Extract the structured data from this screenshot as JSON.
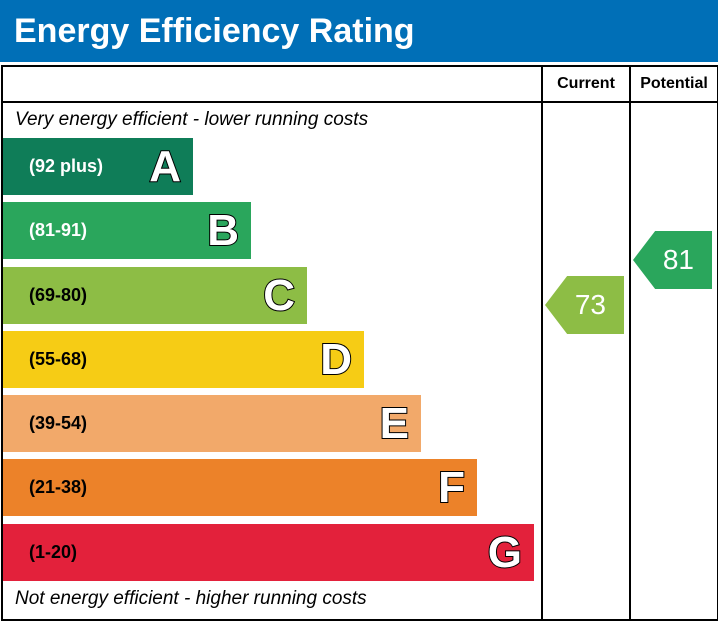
{
  "title": "Energy Efficiency Rating",
  "columns": {
    "current": "Current",
    "potential": "Potential"
  },
  "top_note": "Very energy efficient - lower running costs",
  "bottom_note": "Not energy efficient - higher running costs",
  "chart_data": {
    "type": "bar",
    "categories": [
      "A",
      "B",
      "C",
      "D",
      "E",
      "F",
      "G"
    ],
    "ranges": [
      "(92 plus)",
      "(81-91)",
      "(69-80)",
      "(55-68)",
      "(39-54)",
      "(21-38)",
      "(1-20)"
    ],
    "colors": [
      "#0f7d58",
      "#2aa65c",
      "#8dbd45",
      "#f6cc15",
      "#f2a96a",
      "#ec8229",
      "#e3213b"
    ],
    "range_text_colors": [
      "#ffffff",
      "#ffffff",
      "#000000",
      "#000000",
      "#000000",
      "#000000",
      "#000000"
    ],
    "current": {
      "value": "73",
      "band": "C"
    },
    "potential": {
      "value": "81",
      "band": "B"
    }
  }
}
